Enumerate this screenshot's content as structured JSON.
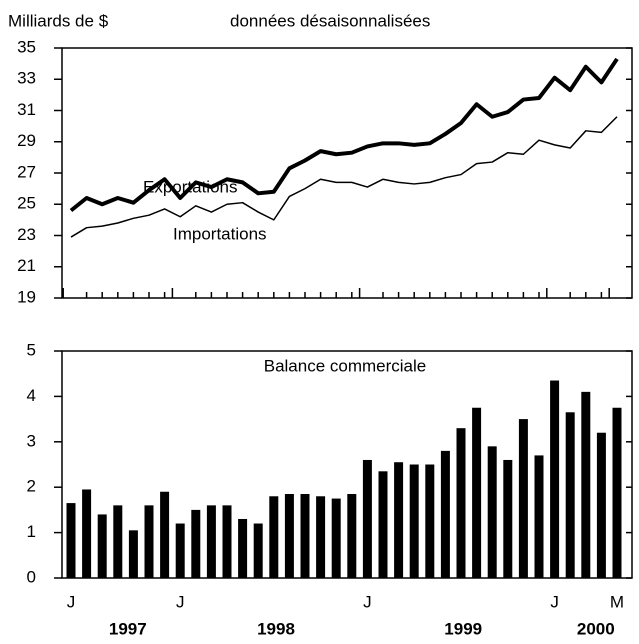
{
  "chart_data": [
    {
      "type": "line",
      "ylabel": "Milliards de $",
      "subtitle": "données désaisonnalisées",
      "ylim": [
        19,
        35
      ],
      "yticks": [
        19,
        21,
        23,
        25,
        27,
        29,
        31,
        33,
        35
      ],
      "series": [
        {
          "name": "Exportations",
          "color": "#000000",
          "width": 4,
          "values": [
            24.6,
            25.4,
            25.0,
            25.4,
            25.1,
            25.9,
            26.6,
            25.4,
            26.4,
            26.1,
            26.6,
            26.4,
            25.7,
            25.8,
            27.3,
            27.8,
            28.4,
            28.2,
            28.3,
            28.7,
            28.9,
            28.9,
            28.8,
            28.9,
            29.5,
            30.2,
            31.4,
            30.6,
            30.9,
            31.7,
            31.8,
            33.1,
            32.3,
            33.8,
            32.8,
            34.3
          ]
        },
        {
          "name": "Importations",
          "color": "#000000",
          "width": 1.5,
          "values": [
            22.9,
            23.5,
            23.6,
            23.8,
            24.1,
            24.3,
            24.7,
            24.2,
            24.9,
            24.5,
            25.0,
            25.1,
            24.5,
            24.0,
            25.5,
            26.0,
            26.6,
            26.4,
            26.4,
            26.1,
            26.6,
            26.4,
            26.3,
            26.4,
            26.7,
            26.9,
            27.6,
            27.7,
            28.3,
            28.2,
            29.1,
            28.8,
            28.6,
            29.7,
            29.6,
            30.6
          ]
        }
      ]
    },
    {
      "type": "bar",
      "title": "Balance commerciale",
      "color": "#000000",
      "ylim": [
        0,
        5
      ],
      "yticks": [
        0,
        1,
        2,
        3,
        4,
        5
      ],
      "categories": [
        "J",
        null,
        null,
        null,
        null,
        null,
        null,
        "J",
        null,
        null,
        null,
        null,
        null,
        null,
        null,
        null,
        null,
        null,
        null,
        "J",
        null,
        null,
        null,
        null,
        null,
        null,
        null,
        null,
        null,
        null,
        null,
        "J",
        null,
        null,
        null,
        "M"
      ],
      "values": [
        1.65,
        1.95,
        1.4,
        1.6,
        1.05,
        1.6,
        1.9,
        1.2,
        1.5,
        1.6,
        1.6,
        1.3,
        1.2,
        1.8,
        1.85,
        1.85,
        1.8,
        1.75,
        1.85,
        2.6,
        2.35,
        2.55,
        2.5,
        2.5,
        2.8,
        3.3,
        3.75,
        2.9,
        2.6,
        3.5,
        2.7,
        4.35,
        3.65,
        4.1,
        3.2,
        3.75
      ],
      "year_labels": [
        "1997",
        "1998",
        "1999",
        "2000"
      ]
    }
  ]
}
